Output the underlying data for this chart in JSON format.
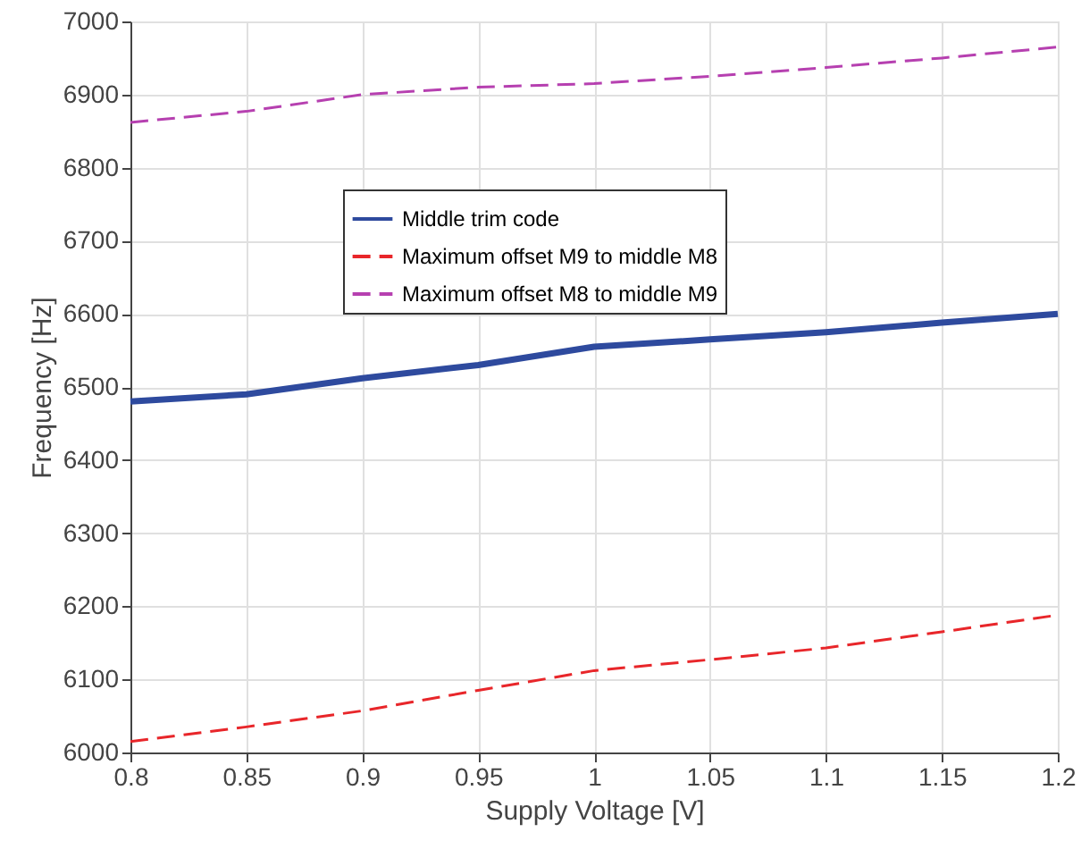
{
  "chart_data": {
    "type": "line",
    "xlabel": "Supply Voltage [V]",
    "ylabel": "Frequency [Hz]",
    "x": [
      0.8,
      0.85,
      0.9,
      0.95,
      1.0,
      1.05,
      1.1,
      1.15,
      1.2
    ],
    "series": [
      {
        "name": "Middle trim code",
        "color": "#2e4a9e",
        "line_style": "solid",
        "values": [
          6480,
          6490,
          6512,
          6530,
          6555,
          6565,
          6575,
          6588,
          6600
        ]
      },
      {
        "name": "Maximum offset M9 to middle M8",
        "color": "#e8262a",
        "line_style": "dashed",
        "values": [
          6015,
          6035,
          6057,
          6085,
          6112,
          6127,
          6143,
          6165,
          6188
        ]
      },
      {
        "name": "Maximum offset M8 to middle M9",
        "color": "#b640b0",
        "line_style": "dashed",
        "values": [
          6862,
          6877,
          6900,
          6910,
          6915,
          6925,
          6937,
          6950,
          6965
        ]
      }
    ],
    "xlim": [
      0.8,
      1.2
    ],
    "xticks": [
      0.8,
      0.85,
      0.9,
      0.95,
      1,
      1.05,
      1.1,
      1.15,
      1.2
    ],
    "ylim": [
      6000,
      7000
    ],
    "yticks": [
      6000,
      6100,
      6200,
      6300,
      6400,
      6500,
      6600,
      6700,
      6800,
      6900,
      7000
    ],
    "grid": true,
    "legend": "top",
    "marker": "none"
  }
}
